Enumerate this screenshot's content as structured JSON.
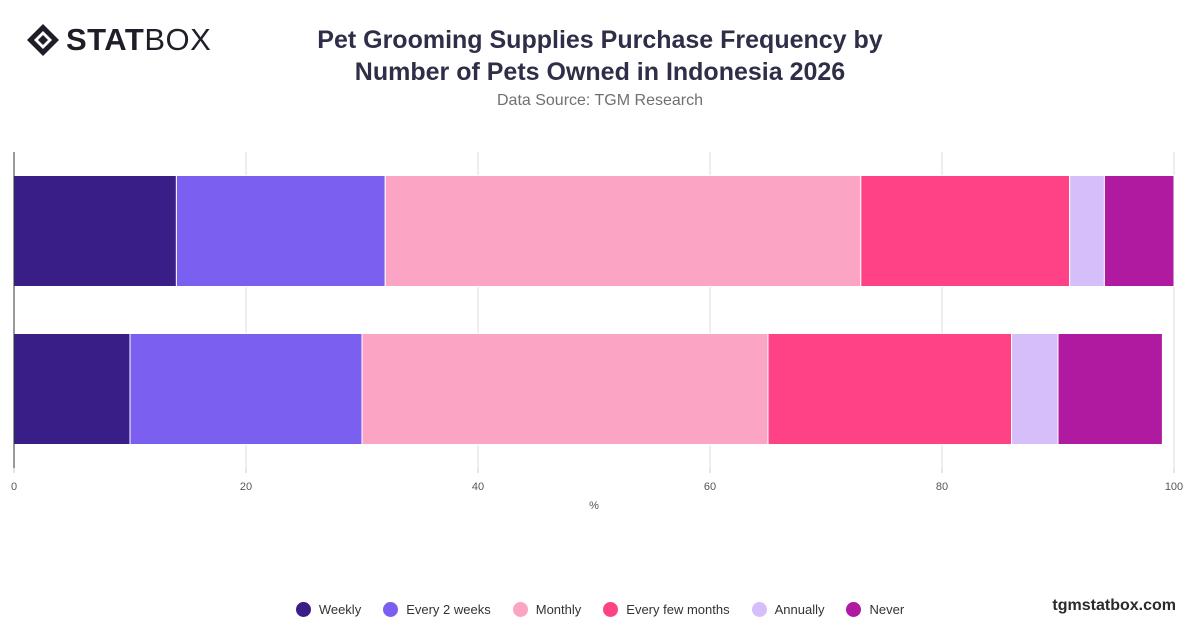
{
  "brand": {
    "logo_bold": "STAT",
    "logo_light": "BOX"
  },
  "header": {
    "title_line1": "Pet Grooming Supplies Purchase Frequency by",
    "title_line2": "Number of Pets Owned in Indonesia 2026",
    "subtitle": "Data Source: TGM Research"
  },
  "watermark": "tgmstatbox.com",
  "chart_data": {
    "type": "bar",
    "orientation": "horizontal",
    "stacked": true,
    "title": "Pet Grooming Supplies Purchase Frequency by Number of Pets Owned in Indonesia 2026",
    "subtitle": "Data Source: TGM Research",
    "xlabel": "%",
    "ylabel": "",
    "xlim": [
      0,
      100
    ],
    "xticks": [
      0,
      20,
      40,
      60,
      80,
      100
    ],
    "grid": true,
    "legend_position": "bottom",
    "categories": [
      "",
      ""
    ],
    "series": [
      {
        "name": "Weekly",
        "color": "#3a1e87",
        "values": [
          14,
          10
        ]
      },
      {
        "name": "Every 2 weeks",
        "color": "#7b5ff0",
        "values": [
          18,
          20
        ]
      },
      {
        "name": "Monthly",
        "color": "#fba4c4",
        "values": [
          41,
          35
        ]
      },
      {
        "name": "Every few months",
        "color": "#ff4285",
        "values": [
          18,
          21
        ]
      },
      {
        "name": "Annually",
        "color": "#d6befa",
        "values": [
          3,
          4
        ]
      },
      {
        "name": "Never",
        "color": "#b01aa0",
        "values": [
          6,
          9
        ]
      }
    ]
  }
}
